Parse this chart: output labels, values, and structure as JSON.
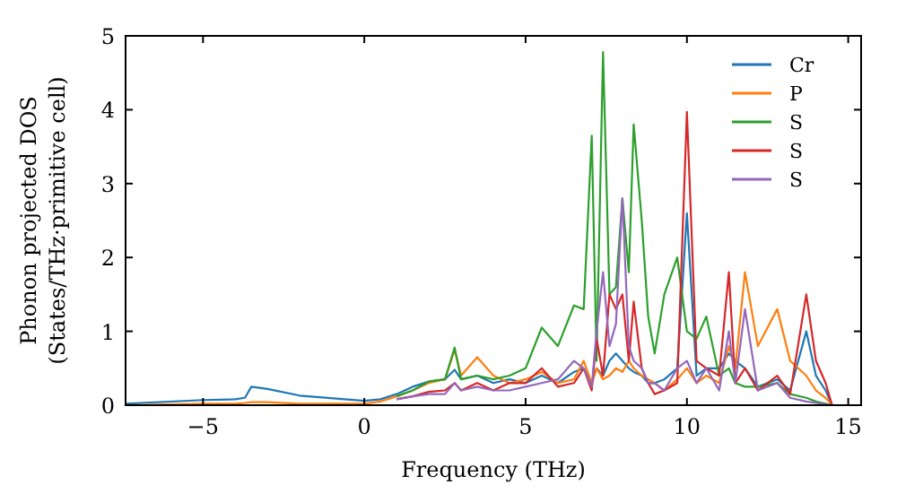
{
  "chart_data": {
    "type": "line",
    "xlabel": "Frequency (THz)",
    "ylabel": "Phonon projected DOS\n(States/THz·primitive cell)",
    "x": [
      -7.4,
      -5,
      -4,
      -3.7,
      -3.5,
      -3,
      -2,
      0,
      0.5,
      1,
      1.5,
      2,
      2.5,
      2.8,
      3,
      3.5,
      4,
      4.5,
      5,
      5.5,
      6,
      6.5,
      6.8,
      7.05,
      7.2,
      7.4,
      7.6,
      7.8,
      8.0,
      8.2,
      8.35,
      8.6,
      8.8,
      9,
      9.3,
      9.7,
      10,
      10.3,
      10.6,
      11,
      11.3,
      11.5,
      11.8,
      12.2,
      12.8,
      13.2,
      13.7,
      14,
      14.3,
      14.5
    ],
    "series": [
      {
        "name": "Cr",
        "color": "#1f77b4",
        "values": [
          0.02,
          0.07,
          0.08,
          0.1,
          0.25,
          0.22,
          0.13,
          0.06,
          0.08,
          0.15,
          0.25,
          0.32,
          0.35,
          0.48,
          0.35,
          0.4,
          0.3,
          0.35,
          0.3,
          0.4,
          0.3,
          0.45,
          0.5,
          0.3,
          0.5,
          0.4,
          0.6,
          0.7,
          0.6,
          0.5,
          0.45,
          0.4,
          0.3,
          0.3,
          0.35,
          0.5,
          2.6,
          0.4,
          0.5,
          0.5,
          0.7,
          0.6,
          0.5,
          0.25,
          0.35,
          0.2,
          1.0,
          0.4,
          0.2,
          0
        ]
      },
      {
        "name": "P",
        "color": "#ff7f0e",
        "values": [
          0,
          0.02,
          0.02,
          0.03,
          0.04,
          0.04,
          0.02,
          0.02,
          0.05,
          0.12,
          0.2,
          0.3,
          0.35,
          0.75,
          0.4,
          0.65,
          0.4,
          0.3,
          0.35,
          0.45,
          0.3,
          0.35,
          0.6,
          0.3,
          0.5,
          0.35,
          0.4,
          0.5,
          0.45,
          0.6,
          0.5,
          0.4,
          0.35,
          0.3,
          0.2,
          0.35,
          0.5,
          0.3,
          0.4,
          0.3,
          0.8,
          0.5,
          1.8,
          0.8,
          1.3,
          0.6,
          0.4,
          0.2,
          0.1,
          0
        ]
      },
      {
        "name": "S",
        "color": "#2ca02c",
        "x": [
          1,
          1.5,
          2,
          2.5,
          2.8,
          3,
          3.5,
          4,
          4.5,
          5,
          5.5,
          6,
          6.5,
          6.8,
          7.05,
          7.2,
          7.4,
          7.6,
          7.8,
          8.0,
          8.2,
          8.35,
          8.6,
          8.8,
          9,
          9.3,
          9.7,
          10,
          10.3,
          10.6,
          11,
          11.3,
          11.5,
          11.8,
          12.2,
          12.8,
          13.2,
          13.7,
          14,
          14.3,
          14.5
        ],
        "values": [
          0.12,
          0.2,
          0.32,
          0.35,
          0.78,
          0.35,
          0.4,
          0.35,
          0.4,
          0.5,
          1.05,
          0.8,
          1.35,
          1.3,
          3.65,
          0.6,
          4.78,
          1.5,
          1.6,
          2.8,
          1.8,
          3.8,
          2.5,
          1.2,
          0.7,
          1.5,
          2.0,
          1.0,
          0.9,
          1.2,
          0.4,
          0.5,
          0.3,
          0.25,
          0.25,
          0.3,
          0.15,
          0.1,
          0.05,
          0.02,
          0
        ]
      },
      {
        "name": "S",
        "color": "#d62728",
        "x": [
          1,
          1.5,
          2,
          2.5,
          2.8,
          3,
          3.5,
          4,
          4.5,
          5,
          5.5,
          6,
          6.5,
          6.8,
          7.05,
          7.2,
          7.4,
          7.6,
          7.8,
          8.0,
          8.2,
          8.35,
          8.6,
          8.8,
          9,
          9.3,
          9.7,
          10,
          10.3,
          10.6,
          11,
          11.3,
          11.5,
          11.8,
          12.2,
          12.8,
          13.2,
          13.7,
          14,
          14.3,
          14.5
        ],
        "values": [
          0.08,
          0.12,
          0.18,
          0.2,
          0.3,
          0.2,
          0.3,
          0.2,
          0.3,
          0.3,
          0.5,
          0.25,
          0.3,
          0.5,
          0.2,
          0.9,
          0.4,
          1.5,
          1.3,
          1.5,
          0.6,
          1.4,
          0.5,
          0.3,
          0.15,
          0.2,
          0.3,
          3.97,
          0.6,
          0.5,
          0.4,
          1.8,
          0.3,
          0.5,
          0.2,
          0.4,
          0.15,
          1.5,
          0.6,
          0.3,
          0
        ]
      },
      {
        "name": "S",
        "color": "#9467bd",
        "x": [
          1,
          1.5,
          2,
          2.5,
          2.8,
          3,
          3.5,
          4,
          4.5,
          5,
          5.5,
          6,
          6.5,
          6.8,
          7.05,
          7.2,
          7.4,
          7.6,
          7.8,
          8.0,
          8.2,
          8.35,
          8.6,
          8.8,
          9,
          9.3,
          9.7,
          10,
          10.3,
          10.6,
          11,
          11.3,
          11.5,
          11.8,
          12.2,
          12.8,
          13.2,
          13.7,
          14,
          14.3,
          14.5
        ],
        "values": [
          0.08,
          0.12,
          0.15,
          0.15,
          0.3,
          0.2,
          0.25,
          0.2,
          0.2,
          0.25,
          0.3,
          0.35,
          0.6,
          0.5,
          0.25,
          1.0,
          1.8,
          0.8,
          1.1,
          2.8,
          0.8,
          0.6,
          0.5,
          0.3,
          0.3,
          0.2,
          0.5,
          0.6,
          0.3,
          0.5,
          0.2,
          1.0,
          0.3,
          1.3,
          0.2,
          0.3,
          0.1,
          0.05,
          0.03,
          0.01,
          0
        ]
      }
    ],
    "xlim": [
      -7.4,
      15.4
    ],
    "xticks": [
      {
        "value": -5,
        "label": "−5"
      },
      0,
      5,
      10,
      15
    ],
    "ylim": [
      0,
      5
    ],
    "yticks": [
      0,
      1,
      2,
      3,
      4,
      5
    ],
    "grid": false,
    "legend": "top right",
    "marker": "none",
    "line_style": "solid"
  }
}
